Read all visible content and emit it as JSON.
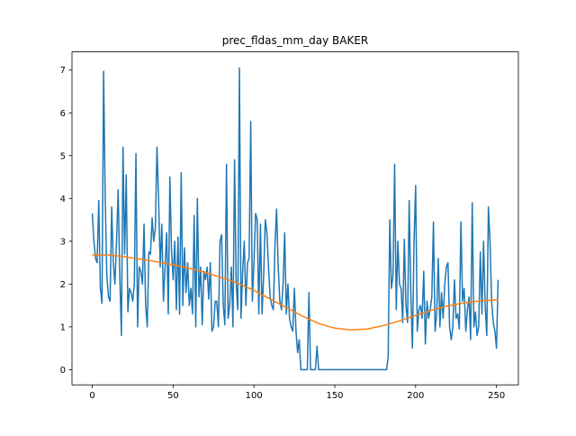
{
  "chart_data": {
    "type": "line",
    "title": "prec_fldas_mm_day BAKER",
    "xlim": [
      -12.55,
      263.55
    ],
    "xticks": [
      0,
      50,
      100,
      150,
      200,
      250
    ],
    "ylim": [
      -0.354,
      7.424
    ],
    "yticks": [
      0,
      1,
      2,
      3,
      4,
      5,
      6,
      7
    ],
    "grid": false,
    "series": [
      {
        "color": "#1f77b4",
        "x": [
          0,
          1,
          2,
          3,
          4,
          5,
          6,
          7,
          8,
          9,
          10,
          11,
          12,
          13,
          14,
          15,
          16,
          17,
          18,
          19,
          20,
          21,
          22,
          23,
          24,
          25,
          26,
          27,
          28,
          29,
          30,
          31,
          32,
          33,
          34,
          35,
          36,
          37,
          38,
          39,
          40,
          41,
          42,
          43,
          44,
          45,
          46,
          47,
          48,
          49,
          50,
          51,
          52,
          53,
          54,
          55,
          56,
          57,
          58,
          59,
          60,
          61,
          62,
          63,
          64,
          65,
          66,
          67,
          68,
          69,
          70,
          71,
          72,
          73,
          74,
          75,
          76,
          77,
          78,
          79,
          80,
          81,
          82,
          83,
          84,
          85,
          86,
          87,
          88,
          89,
          90,
          91,
          92,
          93,
          94,
          95,
          96,
          97,
          98,
          99,
          100,
          101,
          102,
          103,
          104,
          105,
          106,
          107,
          108,
          109,
          110,
          111,
          112,
          113,
          114,
          115,
          116,
          117,
          118,
          119,
          120,
          121,
          122,
          123,
          124,
          125,
          126,
          127,
          128,
          129,
          130,
          131,
          132,
          133,
          134,
          135,
          136,
          137,
          138,
          139,
          140,
          141,
          142,
          143,
          144,
          145,
          146,
          147,
          148,
          149,
          150,
          151,
          152,
          153,
          154,
          155,
          156,
          157,
          158,
          159,
          160,
          161,
          162,
          163,
          164,
          165,
          166,
          167,
          168,
          169,
          170,
          171,
          172,
          173,
          174,
          175,
          176,
          177,
          178,
          179,
          180,
          181,
          182,
          183,
          184,
          185,
          186,
          187,
          188,
          189,
          190,
          191,
          192,
          193,
          194,
          195,
          196,
          197,
          198,
          199,
          200,
          201,
          202,
          203,
          204,
          205,
          206,
          207,
          208,
          209,
          210,
          211,
          212,
          213,
          214,
          215,
          216,
          217,
          218,
          219,
          220,
          221,
          222,
          223,
          224,
          225,
          226,
          227,
          228,
          229,
          230,
          231,
          232,
          233,
          234,
          235,
          236,
          237,
          238,
          239,
          240,
          241,
          242,
          243,
          244,
          245,
          246,
          247,
          248,
          249,
          250,
          251
        ],
        "values": [
          3.65,
          3.0,
          2.6,
          2.5,
          3.95,
          1.9,
          1.55,
          6.97,
          4.0,
          2.2,
          1.7,
          1.6,
          3.8,
          2.5,
          2.0,
          3.0,
          4.2,
          2.2,
          0.8,
          5.2,
          2.7,
          4.55,
          1.35,
          1.9,
          1.8,
          1.6,
          2.0,
          5.05,
          1.0,
          2.4,
          2.3,
          2.0,
          3.4,
          1.5,
          1.0,
          2.75,
          2.7,
          3.55,
          3.0,
          3.3,
          5.2,
          4.0,
          2.4,
          3.4,
          1.6,
          2.4,
          3.2,
          1.3,
          4.5,
          2.8,
          2.1,
          3.0,
          1.4,
          3.1,
          1.3,
          4.6,
          1.5,
          2.85,
          1.8,
          2.5,
          1.5,
          1.9,
          1.3,
          3.6,
          1.0,
          4.0,
          1.7,
          2.4,
          1.05,
          2.3,
          2.1,
          2.4,
          1.65,
          2.5,
          0.9,
          1.0,
          1.6,
          1.6,
          1.0,
          3.0,
          3.15,
          1.5,
          1.05,
          4.8,
          1.2,
          1.5,
          2.4,
          1.0,
          4.9,
          2.0,
          1.4,
          7.05,
          1.2,
          2.3,
          3.0,
          1.5,
          2.5,
          2.6,
          5.8,
          1.6,
          2.5,
          3.65,
          3.5,
          1.3,
          3.4,
          1.3,
          2.2,
          3.5,
          3.2,
          2.4,
          1.7,
          1.5,
          1.4,
          2.9,
          3.75,
          2.4,
          1.6,
          1.4,
          2.0,
          3.2,
          1.3,
          2.0,
          1.2,
          1.0,
          0.9,
          1.9,
          0.9,
          0.4,
          0.7,
          0,
          0,
          0,
          0,
          0,
          1.8,
          0,
          0,
          0,
          0,
          0.55,
          0,
          0,
          0,
          0,
          0,
          0,
          0,
          0,
          0,
          0,
          0,
          0,
          0,
          0,
          0,
          0,
          0,
          0,
          0,
          0,
          0,
          0,
          0,
          0,
          0,
          0,
          0,
          0,
          0,
          0,
          0,
          0,
          0,
          0,
          0,
          0,
          0,
          0,
          0,
          0,
          0,
          0,
          0,
          0.3,
          3.5,
          1.9,
          2.2,
          4.8,
          1.4,
          3.0,
          2.0,
          1.9,
          1.1,
          3.05,
          1.5,
          1.1,
          3.95,
          1.8,
          0.5,
          3.0,
          4.3,
          0.9,
          1.4,
          1.5,
          1.2,
          2.3,
          0.6,
          1.6,
          1.2,
          1.4,
          1.7,
          3.45,
          0.9,
          1.3,
          2.6,
          1.0,
          1.8,
          1.2,
          2.0,
          2.4,
          2.5,
          1.0,
          0.7,
          1.0,
          2.1,
          1.2,
          1.3,
          0.95,
          3.45,
          1.6,
          1.9,
          0.9,
          1.4,
          1.7,
          0.7,
          3.9,
          1.0,
          1.35,
          0.8,
          1.0,
          2.75,
          1.3,
          3.0,
          1.5,
          0.8,
          3.8,
          3.0,
          1.6,
          1.1,
          0.9,
          0.5,
          2.1
        ]
      },
      {
        "color": "#ff7f0e",
        "x": [
          0,
          10,
          20,
          30,
          40,
          50,
          60,
          70,
          80,
          90,
          100,
          110,
          120,
          130,
          140,
          150,
          160,
          170,
          180,
          190,
          200,
          210,
          220,
          230,
          240,
          250,
          251
        ],
        "values": [
          2.68,
          2.68,
          2.64,
          2.58,
          2.52,
          2.45,
          2.37,
          2.27,
          2.15,
          2.02,
          1.85,
          1.65,
          1.45,
          1.25,
          1.08,
          0.97,
          0.93,
          0.95,
          1.03,
          1.14,
          1.27,
          1.39,
          1.49,
          1.56,
          1.61,
          1.63,
          1.63
        ]
      }
    ]
  }
}
